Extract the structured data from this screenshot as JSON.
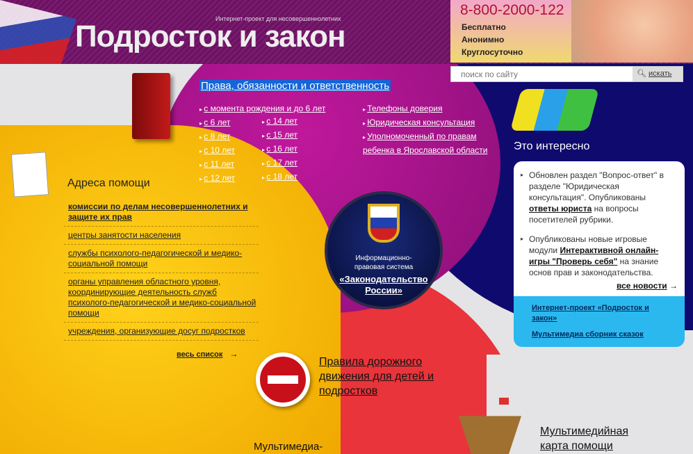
{
  "header": {
    "subtitle": "Интернет-проект для несовершеннолетних",
    "title": "Подросток и закон",
    "phone": "8-800-2000-122",
    "phone_lines": [
      "Бесплатно",
      "Анонимно",
      "Круглосуточно"
    ]
  },
  "search": {
    "placeholder": "поиск по сайту",
    "button": "искать"
  },
  "rights": {
    "title": "Права, обязанности и ответственность",
    "col1": [
      "с момента рождения и до 6 лет",
      "с 6 лет",
      "с 8 лет",
      "с 10 лет",
      "с 11 лет",
      "с 12 лет"
    ],
    "col2": [
      "с 14 лет",
      "с 15 лет",
      "с 16 лет",
      "с 17 лет",
      "с 18 лет"
    ],
    "col3": [
      "Телефоны доверия",
      "Юридическая консультация",
      "Уполномоченный по правам ребенка в Ярославской области"
    ]
  },
  "help": {
    "title": "Адреса помощи",
    "items": [
      "комиссии по делам несовершеннолетних и защите их прав",
      "центры занятости населения",
      "службы психолого-педагогической и медико-социальной помощи",
      "органы управления областного уровня, координирующие деятельность служб психолого-педагогической и медико-социальной помощи",
      "учреждения, организующие досуг подростков"
    ],
    "all": "весь список"
  },
  "law": {
    "caption": "Информационно-правовая система",
    "link": "«Законодательство России»"
  },
  "interesting": {
    "title": "Это интересно",
    "news1": {
      "pre": "Обновлен раздел \"Вопрос-ответ\" в разделе \"Юридическая консультация\". Опубликованы ",
      "link": "ответы юриста",
      "post": " на вопросы посетителей рубрики."
    },
    "news2": {
      "pre": "Опубликованы новые игровые модули ",
      "link": "Интерактивной онлайн-игры \"Проверь себя\"",
      "post": " на знание основ прав и законодательства."
    },
    "all": "все новости",
    "links": [
      "Интернет-проект «Подросток и закон»",
      "Мультимедиа сборник сказок"
    ]
  },
  "traffic": "Правила дорожного движения для детей и подростков",
  "map": "Мультимедийная карта помощи",
  "multimedia": "Мультимедиа-"
}
